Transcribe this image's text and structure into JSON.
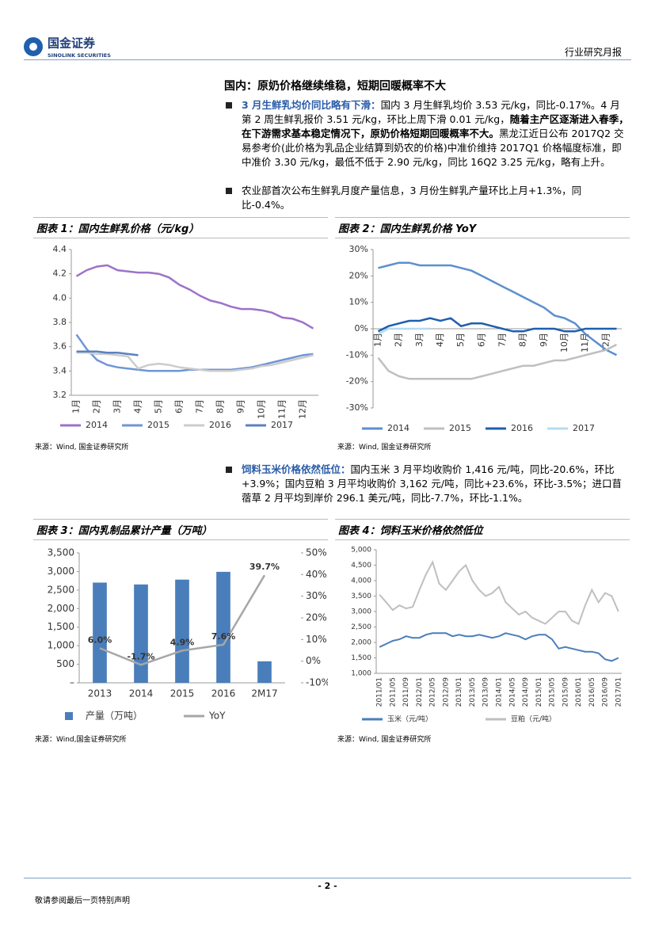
{
  "header": {
    "brand": "国金证券",
    "brand_en": "SINOLINK SECURITIES",
    "report_type": "行业研究月报"
  },
  "section": {
    "heading": "国内：原奶价格继续维稳，短期回暖概率不大",
    "bullets": [
      [
        {
          "style": "lead",
          "text": "3 月生鲜乳均价同比略有下滑："
        },
        {
          "style": "plain",
          "text": "国内 3 月生鲜乳均价 3.53 元/kg，同比-0.17%。4 月第 2 周生鲜乳报价 3.51 元/kg，环比上周下滑 0.01 元/kg，"
        },
        {
          "style": "bold",
          "text": "随着主产区逐渐进入春季，在下游需求基本稳定情况下，原奶价格短期回暖概率不大。"
        },
        {
          "style": "plain",
          "text": "黑龙江近日公布 2017Q2 交易参考价(此价格为乳品企业结算到奶农的价格)中准价维持 2017Q1 价格幅度标准，即中准价 3.30 元/kg，最低不低于 2.90 元/kg，同比 16Q2 3.25 元/kg，略有上升。"
        }
      ],
      [
        {
          "style": "plain",
          "text": "农业部首次公布生鲜乳月度产量信息，3 月份生鲜乳产量环比上月+1.3%，同比-0.4%。"
        }
      ],
      [
        {
          "style": "lead",
          "text": "饲料玉米价格依然低位："
        },
        {
          "style": "plain",
          "text": "国内玉米 3 月平均收购价 1,416 元/吨，同比-20.6%，环比+3.9%；国内豆粕 3 月平均收购价 3,162 元/吨，同比+23.6%，环比-3.5%；进口苜蓿草 2 月平均到岸价 296.1 美元/吨，同比-7.7%，环比-1.1%。"
        }
      ]
    ]
  },
  "chart_data": [
    {
      "type": "line",
      "title": "图表 1：国内生鲜乳价格（元/kg）",
      "source": "来源：Wind, 国金证券研究所",
      "categories": [
        "1月",
        null,
        "2月",
        null,
        "3月",
        null,
        "4月",
        null,
        "5月",
        null,
        "6月",
        null,
        "7月",
        null,
        "8月",
        null,
        "9月",
        null,
        "10月",
        null,
        "11月",
        null,
        "12月",
        null
      ],
      "series": [
        {
          "name": "2014",
          "color": "#9e72c8",
          "values": [
            4.18,
            4.23,
            4.26,
            4.27,
            4.23,
            4.22,
            4.21,
            4.21,
            4.2,
            4.17,
            4.11,
            4.07,
            4.02,
            3.98,
            3.96,
            3.93,
            3.91,
            3.91,
            3.9,
            3.88,
            3.84,
            3.83,
            3.8,
            3.75
          ]
        },
        {
          "name": "2015",
          "color": "#6f95d6",
          "values": [
            3.7,
            3.58,
            3.49,
            3.45,
            3.43,
            3.42,
            3.41,
            3.4,
            3.4,
            3.4,
            3.4,
            3.41,
            3.41,
            3.41,
            3.41,
            3.41,
            3.42,
            3.43,
            3.45,
            3.47,
            3.49,
            3.51,
            3.53,
            3.54
          ]
        },
        {
          "name": "2016",
          "color": "#cccccc",
          "values": [
            3.55,
            3.55,
            3.54,
            3.54,
            3.53,
            3.52,
            3.42,
            3.45,
            3.46,
            3.45,
            3.43,
            3.42,
            3.41,
            3.4,
            3.4,
            3.4,
            3.41,
            3.42,
            3.44,
            3.45,
            3.47,
            3.49,
            3.51,
            3.53
          ]
        },
        {
          "name": "2017",
          "color": "#5b82c0",
          "values": [
            3.56,
            3.56,
            3.56,
            3.55,
            3.55,
            3.54,
            3.53,
            null,
            null,
            null,
            null,
            null,
            null,
            null,
            null,
            null,
            null,
            null,
            null,
            null,
            null,
            null,
            null,
            null
          ]
        }
      ],
      "ylim": [
        3.2,
        4.4
      ],
      "yticks": [
        3.2,
        3.4,
        3.6,
        3.8,
        {
          "value": 4,
          "label": "4.0"
        },
        4.2,
        4.4
      ]
    },
    {
      "type": "line",
      "title": "图表 2：国内生鲜乳价格 YoY",
      "source": "来源：Wind, 国金证券研究所",
      "categories": [
        "1月",
        null,
        "2月",
        null,
        "3月",
        null,
        "4月",
        null,
        "5月",
        null,
        "6月",
        null,
        "7月",
        null,
        "8月",
        null,
        "9月",
        null,
        "10月",
        null,
        "11月",
        null,
        "12月",
        null
      ],
      "series": [
        {
          "name": "2014",
          "color": "#5b8fd0",
          "values": [
            23,
            24,
            25,
            25,
            24,
            24,
            24,
            24,
            23,
            22,
            20,
            18,
            16,
            14,
            12,
            10,
            8,
            5,
            4,
            2,
            -2,
            -5,
            -8,
            -10
          ]
        },
        {
          "name": "2015",
          "color": "#bfbfbf",
          "values": [
            -11,
            -16,
            -18,
            -19,
            -19,
            -19,
            -19,
            -19,
            -19,
            -19,
            -18,
            -17,
            -16,
            -15,
            -14,
            -14,
            -13,
            -12,
            -12,
            -11,
            -10,
            -9,
            -8,
            -6
          ]
        },
        {
          "name": "2016",
          "color": "#1f5fae",
          "values": [
            -1,
            1,
            2,
            3,
            3,
            4,
            3,
            4,
            1,
            2,
            2,
            1,
            0,
            -1,
            -1,
            0,
            0,
            0,
            -1,
            -1,
            0,
            0,
            0,
            0
          ]
        },
        {
          "name": "2017",
          "color": "#b4dcf0",
          "values": [
            -2,
            0,
            0,
            0,
            0,
            0,
            null,
            null,
            null,
            null,
            null,
            null,
            null,
            null,
            null,
            null,
            null,
            null,
            null,
            null,
            null,
            null,
            null,
            null
          ]
        }
      ],
      "ylim": [
        -30,
        30
      ],
      "yticks": [
        {
          "value": -30,
          "label": "-30%"
        },
        {
          "value": -20,
          "label": "-20%"
        },
        {
          "value": -10,
          "label": "-10%"
        },
        {
          "value": 0,
          "label": "0%"
        },
        {
          "value": 10,
          "label": "10%"
        },
        {
          "value": 20,
          "label": "20%"
        },
        {
          "value": 30,
          "label": "30%"
        }
      ]
    },
    {
      "type": "bar",
      "title": "图表 3：国内乳制品累计产量（万吨）",
      "source": "来源：Wind,国金证券研究所",
      "categories": [
        "2013",
        "2014",
        "2015",
        "2016",
        "2M17"
      ],
      "series": [
        {
          "name": "产量（万吨）",
          "color": "#4a7ebb",
          "values": [
            2700,
            2650,
            2780,
            2990,
            580
          ]
        },
        {
          "name": "YoY",
          "type": "line",
          "axis": "y2",
          "color": "#a6a6a6",
          "values": [
            6.0,
            -1.7,
            4.9,
            7.6,
            39.7
          ],
          "value_labels": [
            "6.0%",
            "-1.7%",
            "4.9%",
            "7.6%",
            "39.7%"
          ]
        }
      ],
      "ylim": [
        0,
        3500
      ],
      "yticks": [
        {
          "value": 0,
          "label": "–"
        },
        500,
        {
          "value": 1000,
          "label": "1,000"
        },
        {
          "value": 1500,
          "label": "1,500"
        },
        {
          "value": 2000,
          "label": "2,000"
        },
        {
          "value": 2500,
          "label": "2,500"
        },
        {
          "value": 3000,
          "label": "3,000"
        },
        {
          "value": 3500,
          "label": "3,500"
        }
      ],
      "y2lim": [
        -10,
        50
      ],
      "y2ticks": [
        {
          "value": -10,
          "label": "-10%"
        },
        {
          "value": 0,
          "label": "0%"
        },
        {
          "value": 10,
          "label": "10%"
        },
        {
          "value": 20,
          "label": "20%"
        },
        {
          "value": 30,
          "label": "30%"
        },
        {
          "value": 40,
          "label": "40%"
        },
        {
          "value": 50,
          "label": "50%"
        }
      ]
    },
    {
      "type": "line",
      "title": "图表 4：饲料玉米价格依然低位",
      "source": "来源：Wind, 国金证券研究所",
      "categories": [
        "2011/01",
        null,
        "2011/05",
        null,
        "2011/09",
        null,
        "2012/01",
        null,
        "2012/05",
        null,
        "2012/09",
        null,
        "2013/01",
        null,
        "2013/05",
        null,
        "2013/09",
        null,
        "2014/01",
        null,
        "2014/05",
        null,
        "2014/09",
        null,
        "2015/01",
        null,
        "2015/05",
        null,
        "2015/09",
        null,
        "2016/01",
        null,
        "2016/05",
        null,
        "2016/09",
        null,
        "2017/01"
      ],
      "series": [
        {
          "name": "玉米（元/吨）",
          "color": "#4a7ebb",
          "values": [
            1850,
            1950,
            2050,
            2100,
            2200,
            2150,
            2150,
            2250,
            2300,
            2300,
            2300,
            2200,
            2250,
            2200,
            2200,
            2250,
            2200,
            2150,
            2200,
            2300,
            2250,
            2200,
            2100,
            2200,
            2250,
            2250,
            2100,
            1800,
            1850,
            1800,
            1750,
            1700,
            1700,
            1650,
            1450,
            1400,
            1500
          ]
        },
        {
          "name": "豆粕（元/吨）",
          "color": "#bfbfbf",
          "values": [
            3550,
            3300,
            3050,
            3200,
            3100,
            3150,
            3700,
            4200,
            4600,
            3900,
            3700,
            4000,
            4300,
            4500,
            4000,
            3700,
            3500,
            3600,
            3800,
            3300,
            3100,
            2900,
            3000,
            2800,
            2700,
            2600,
            2800,
            3000,
            3000,
            2700,
            2600,
            3200,
            3700,
            3300,
            3600,
            3500,
            3000
          ]
        }
      ],
      "ylim": [
        1000,
        5000
      ],
      "yticks": [
        {
          "value": 1000,
          "label": "1,000"
        },
        {
          "value": 1500,
          "label": "1,500"
        },
        {
          "value": 2000,
          "label": "2,000"
        },
        {
          "value": 2500,
          "label": "2,500"
        },
        {
          "value": 3000,
          "label": "3,000"
        },
        {
          "value": 3500,
          "label": "3,500"
        },
        {
          "value": 4000,
          "label": "4,000"
        },
        {
          "value": 4500,
          "label": "4,500"
        },
        {
          "value": 5000,
          "label": "5,000"
        }
      ]
    }
  ],
  "footer": {
    "page": "- 2 -",
    "note": "敬请参阅最后一页特别声明"
  }
}
